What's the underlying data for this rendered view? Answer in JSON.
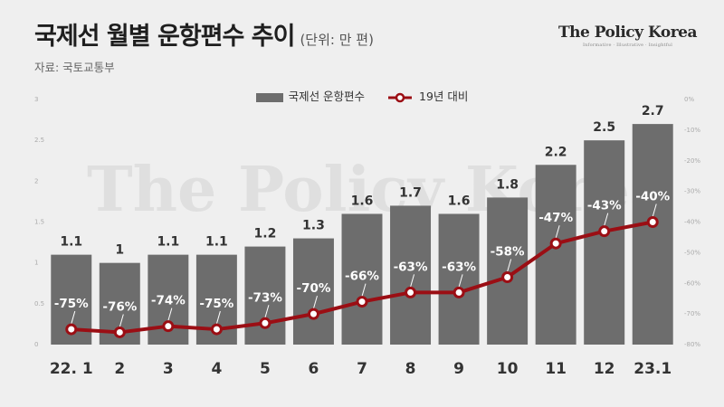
{
  "header": {
    "title": "국제선 월별 운항편수 추이",
    "unit": "(단위: 만 편)",
    "source": "자료: 국토교통부"
  },
  "brand": {
    "name": "The Policy Korea",
    "tagline": "Informative · Illustrative · Insightful",
    "watermark": "The Policy Korea"
  },
  "colors": {
    "bar": "#6d6d6d",
    "line": "#9b0e14",
    "background": "#efefef"
  },
  "chart_data": {
    "type": "bar",
    "categories": [
      "22. 1",
      "2",
      "3",
      "4",
      "5",
      "6",
      "7",
      "8",
      "9",
      "10",
      "11",
      "12",
      "23.1"
    ],
    "series": [
      {
        "name": "국제선 운항편수",
        "type": "bar",
        "axis": "left",
        "values": [
          1.1,
          1,
          1.1,
          1.1,
          1.2,
          1.3,
          1.6,
          1.7,
          1.6,
          1.8,
          2.2,
          2.5,
          2.7
        ],
        "labels": [
          "1.1",
          "1",
          "1.1",
          "1.1",
          "1.2",
          "1.3",
          "1.6",
          "1.7",
          "1.6",
          "1.8",
          "2.2",
          "2.5",
          "2.7"
        ]
      },
      {
        "name": "19년 대비",
        "type": "line",
        "axis": "right",
        "values": [
          -75,
          -76,
          -74,
          -75,
          -73,
          -70,
          -66,
          -63,
          -63,
          -58,
          -47,
          -43,
          -40
        ],
        "labels": [
          "-75%",
          "-76%",
          "-74%",
          "-75%",
          "-73%",
          "-70%",
          "-66%",
          "-63%",
          "-63%",
          "-58%",
          "-47%",
          "-43%",
          "-40%"
        ]
      }
    ],
    "y_left": {
      "lim": [
        0,
        3
      ],
      "ticks": [
        0,
        0.5,
        1,
        1.5,
        2,
        2.5,
        3
      ],
      "tick_labels": [
        "0",
        "0.5",
        "1",
        "1.5",
        "2",
        "2.5",
        "3"
      ]
    },
    "y_right": {
      "lim": [
        -80,
        0
      ],
      "ticks": [
        0,
        -10,
        -20,
        -30,
        -40,
        -50,
        -60,
        -70,
        -80
      ],
      "tick_labels": [
        "0%",
        "-10%",
        "-20%",
        "-30%",
        "-40%",
        "-50%",
        "-60%",
        "-70%",
        "-80%"
      ]
    },
    "legend": "top-center",
    "grid": false
  }
}
